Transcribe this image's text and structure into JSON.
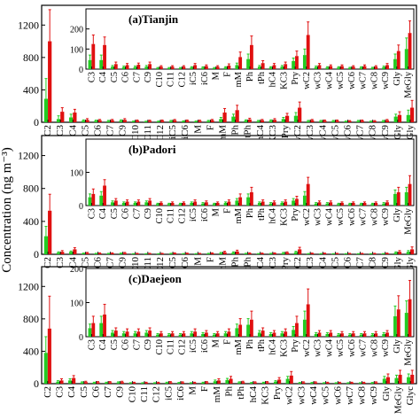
{
  "figure": {
    "ylabel": "Concentration (ng m⁻³)"
  },
  "colors": {
    "green": "#22cc22",
    "red": "#e01010",
    "error": "#222222"
  },
  "chart_data": [
    {
      "type": "bar",
      "panel": "(a)Tianjin",
      "ylim": [
        0,
        1400
      ],
      "yticks": [
        0,
        400,
        800,
        1200
      ],
      "categories": [
        "C2",
        "C3",
        "C4",
        "C5",
        "C6",
        "C7",
        "C9",
        "C10",
        "C11",
        "C12",
        "iC5",
        "iC6",
        "M",
        "F",
        "mM",
        "Ph",
        "tPh",
        "hC4",
        "KC3",
        "Pry",
        "wC2",
        "wC3",
        "wC4",
        "wC5",
        "wC6",
        "wC7",
        "wC8",
        "wC9",
        "Gly",
        "MeGly"
      ],
      "series": [
        {
          "values": [
            290,
            40,
            60,
            20,
            18,
            15,
            20,
            10,
            8,
            10,
            15,
            12,
            10,
            15,
            40,
            70,
            20,
            15,
            20,
            40,
            80,
            15,
            15,
            15,
            10,
            15,
            10,
            15,
            70,
            90
          ]
        },
        {
          "values": [
            1000,
            130,
            120,
            30,
            25,
            25,
            30,
            20,
            18,
            20,
            25,
            20,
            18,
            25,
            120,
            150,
            35,
            25,
            30,
            80,
            180,
            25,
            20,
            20,
            15,
            20,
            15,
            25,
            90,
            180
          ]
        }
      ],
      "error_up": [
        [
          250,
          40,
          40,
          10,
          8,
          8,
          10,
          5,
          5,
          5,
          8,
          6,
          5,
          8,
          20,
          30,
          10,
          8,
          10,
          20,
          40,
          8,
          8,
          8,
          5,
          8,
          5,
          8,
          30,
          60
        ],
        [
          390,
          50,
          40,
          15,
          10,
          10,
          15,
          8,
          8,
          8,
          10,
          8,
          8,
          10,
          50,
          60,
          15,
          10,
          15,
          30,
          70,
          10,
          8,
          8,
          6,
          8,
          6,
          10,
          40,
          90
        ]
      ],
      "inset": {
        "ylim": [
          0,
          300
        ],
        "yticks": [
          0,
          100,
          200
        ],
        "categories": [
          "C3",
          "C4",
          "C5",
          "C6",
          "C7",
          "C9",
          "C10",
          "C11",
          "C12",
          "iC5",
          "iC6",
          "M",
          "F",
          "mM",
          "Ph",
          "tPh",
          "hC4",
          "KC3",
          "Pry",
          "wC2",
          "wC3",
          "wC4",
          "wC5",
          "wC6",
          "wC7",
          "wC8",
          "wC9",
          "Gly",
          "MeGly"
        ],
        "series": [
          {
            "values": [
              45,
              45,
              12,
              10,
              10,
              12,
              5,
              5,
              5,
              8,
              7,
              5,
              8,
              20,
              50,
              12,
              8,
              12,
              40,
              70,
              10,
              8,
              8,
              6,
              8,
              6,
              10,
              50,
              100
            ]
          },
          {
            "values": [
              125,
              120,
              25,
              20,
              22,
              25,
              12,
              12,
              12,
              20,
              15,
              12,
              18,
              60,
              120,
              30,
              20,
              25,
              65,
              170,
              20,
              15,
              15,
              12,
              15,
              12,
              20,
              90,
              180
            ]
          }
        ],
        "error_up": [
          [
            25,
            25,
            6,
            5,
            5,
            6,
            3,
            3,
            3,
            4,
            4,
            3,
            4,
            10,
            25,
            6,
            4,
            6,
            15,
            30,
            5,
            4,
            4,
            3,
            4,
            3,
            5,
            25,
            55
          ],
          [
            45,
            40,
            10,
            8,
            8,
            10,
            5,
            5,
            5,
            8,
            6,
            5,
            8,
            25,
            45,
            12,
            8,
            10,
            25,
            65,
            8,
            6,
            6,
            5,
            6,
            5,
            8,
            30,
            60
          ]
        ]
      }
    },
    {
      "type": "bar",
      "panel": "(b)Padori",
      "ylim": [
        0,
        1400
      ],
      "yticks": [
        0,
        400,
        800,
        1200
      ],
      "categories": [
        "C2",
        "C3",
        "C4",
        "C5",
        "C6",
        "C7",
        "C9",
        "C10",
        "C11",
        "C12",
        "iC5",
        "iC6",
        "M",
        "F",
        "mM",
        "Ph",
        "tPh",
        "hC4",
        "KC3",
        "Pry",
        "wC2",
        "wC3",
        "wC4",
        "wC5",
        "wC6",
        "wC7",
        "wC8",
        "wC9",
        "Gly",
        "MeGly"
      ],
      "series": [
        {
          "values": [
            220,
            20,
            30,
            10,
            8,
            8,
            10,
            5,
            5,
            5,
            8,
            6,
            5,
            8,
            15,
            20,
            8,
            6,
            8,
            15,
            25,
            6,
            6,
            5,
            5,
            5,
            5,
            6,
            20,
            30
          ]
        },
        {
          "values": [
            530,
            30,
            60,
            15,
            12,
            12,
            15,
            8,
            8,
            8,
            12,
            10,
            8,
            12,
            25,
            35,
            12,
            10,
            12,
            20,
            60,
            10,
            10,
            8,
            8,
            8,
            8,
            10,
            30,
            60
          ]
        }
      ],
      "error_up": [
        [
          120,
          10,
          10,
          5,
          4,
          4,
          5,
          3,
          3,
          3,
          4,
          3,
          3,
          4,
          8,
          10,
          4,
          3,
          4,
          8,
          12,
          3,
          3,
          3,
          3,
          3,
          3,
          3,
          10,
          15
        ],
        [
          200,
          15,
          20,
          8,
          6,
          6,
          8,
          4,
          4,
          4,
          6,
          5,
          4,
          6,
          12,
          15,
          6,
          5,
          6,
          10,
          25,
          5,
          5,
          4,
          4,
          4,
          4,
          5,
          15,
          30
        ]
      ],
      "inset": {
        "ylim": [
          0,
          200
        ],
        "yticks": [
          0,
          100
        ],
        "categories": [
          "C3",
          "C4",
          "C5",
          "C6",
          "C7",
          "C9",
          "C10",
          "C11",
          "C12",
          "iC5",
          "iC6",
          "M",
          "F",
          "mM",
          "Ph",
          "tPh",
          "hC4",
          "KC3",
          "Pry",
          "wC2",
          "wC3",
          "wC4",
          "wC5",
          "wC6",
          "wC7",
          "wC8",
          "wC9",
          "Gly",
          "MeGly"
        ],
        "series": [
          {
            "values": [
              25,
              30,
              10,
              8,
              8,
              10,
              5,
              5,
              5,
              8,
              6,
              5,
              8,
              15,
              25,
              8,
              6,
              8,
              15,
              30,
              6,
              6,
              5,
              5,
              5,
              5,
              6,
              35,
              40
            ]
          },
          {
            "values": [
              35,
              60,
              15,
              12,
              12,
              15,
              8,
              8,
              8,
              12,
              10,
              8,
              12,
              25,
              40,
              12,
              10,
              12,
              20,
              65,
              10,
              10,
              8,
              8,
              8,
              8,
              10,
              40,
              65
            ]
          }
        ],
        "error_up": [
          [
            10,
            12,
            4,
            3,
            3,
            4,
            2,
            2,
            2,
            3,
            3,
            2,
            3,
            6,
            10,
            3,
            3,
            3,
            6,
            12,
            3,
            3,
            2,
            2,
            2,
            2,
            3,
            12,
            15
          ],
          [
            15,
            18,
            6,
            5,
            5,
            6,
            3,
            3,
            3,
            5,
            4,
            3,
            5,
            10,
            15,
            5,
            4,
            5,
            8,
            20,
            4,
            4,
            3,
            3,
            3,
            3,
            4,
            15,
            25
          ]
        ]
      }
    },
    {
      "type": "bar",
      "panel": "(c)Daejeon",
      "ylim": [
        0,
        1400
      ],
      "yticks": [
        0,
        400,
        800,
        1200
      ],
      "categories": [
        "C2",
        "C3",
        "C4",
        "C5",
        "C6",
        "C7",
        "C9",
        "C10",
        "C11",
        "C12",
        "iC5",
        "iC6",
        "M",
        "F",
        "mM",
        "Ph",
        "tPh",
        "hC4",
        "KC3",
        "Pry",
        "wC2",
        "wC3",
        "wC4",
        "wC5",
        "wC6",
        "wC7",
        "wC8",
        "wC9",
        "Gly",
        "MeGly",
        "Glyc"
      ],
      "series": [
        {
          "values": [
            380,
            25,
            40,
            15,
            12,
            12,
            15,
            8,
            8,
            8,
            12,
            10,
            8,
            12,
            30,
            45,
            15,
            10,
            12,
            25,
            60,
            10,
            10,
            8,
            8,
            8,
            8,
            10,
            60,
            70,
            80
          ]
        },
        {
          "values": [
            680,
            40,
            70,
            20,
            18,
            18,
            20,
            12,
            12,
            12,
            18,
            15,
            12,
            18,
            40,
            60,
            20,
            15,
            18,
            50,
            100,
            15,
            15,
            12,
            12,
            12,
            12,
            15,
            80,
            110,
            110
          ]
        }
      ],
      "error_up": [
        [
          200,
          12,
          20,
          8,
          6,
          6,
          8,
          4,
          4,
          4,
          6,
          5,
          4,
          6,
          15,
          20,
          8,
          5,
          6,
          12,
          30,
          5,
          5,
          4,
          4,
          4,
          4,
          5,
          30,
          35,
          40
        ],
        [
          400,
          20,
          30,
          10,
          8,
          8,
          10,
          6,
          6,
          6,
          8,
          8,
          6,
          8,
          20,
          30,
          10,
          8,
          8,
          25,
          50,
          8,
          8,
          6,
          6,
          6,
          6,
          8,
          40,
          55,
          55
        ]
      ],
      "inset": {
        "ylim": [
          0,
          200
        ],
        "yticks": [
          0,
          100,
          200
        ],
        "categories": [
          "C3",
          "C4",
          "C5",
          "C6",
          "C7",
          "C9",
          "C10",
          "C11",
          "C12",
          "iC5",
          "iC6",
          "M",
          "F",
          "mM",
          "Ph",
          "tPh",
          "hC4",
          "KC3",
          "Pry",
          "wC2",
          "wC3",
          "wC4",
          "wC5",
          "wC6",
          "wC7",
          "wC8",
          "wC9",
          "Gly",
          "MeGly"
        ],
        "series": [
          {
            "values": [
              25,
              40,
              12,
              10,
              10,
              12,
              6,
              6,
              6,
              10,
              8,
              6,
              10,
              25,
              35,
              12,
              8,
              10,
              20,
              50,
              8,
              8,
              6,
              6,
              6,
              6,
              8,
              60,
              70
            ]
          },
          {
            "values": [
              40,
              65,
              18,
              15,
              15,
              18,
              10,
              10,
              10,
              15,
              12,
              10,
              15,
              35,
              50,
              18,
              12,
              15,
              40,
              95,
              12,
              12,
              10,
              10,
              10,
              10,
              12,
              80,
              110
            ]
          }
        ],
        "error_up": [
          [
            12,
            20,
            6,
            5,
            5,
            6,
            3,
            3,
            3,
            5,
            4,
            3,
            5,
            12,
            18,
            6,
            4,
            5,
            10,
            25,
            4,
            4,
            3,
            3,
            3,
            3,
            4,
            30,
            35
          ],
          [
            20,
            30,
            8,
            8,
            8,
            8,
            5,
            5,
            5,
            8,
            6,
            5,
            8,
            18,
            25,
            8,
            6,
            8,
            20,
            45,
            6,
            6,
            5,
            5,
            5,
            5,
            6,
            40,
            55
          ]
        ]
      }
    }
  ]
}
